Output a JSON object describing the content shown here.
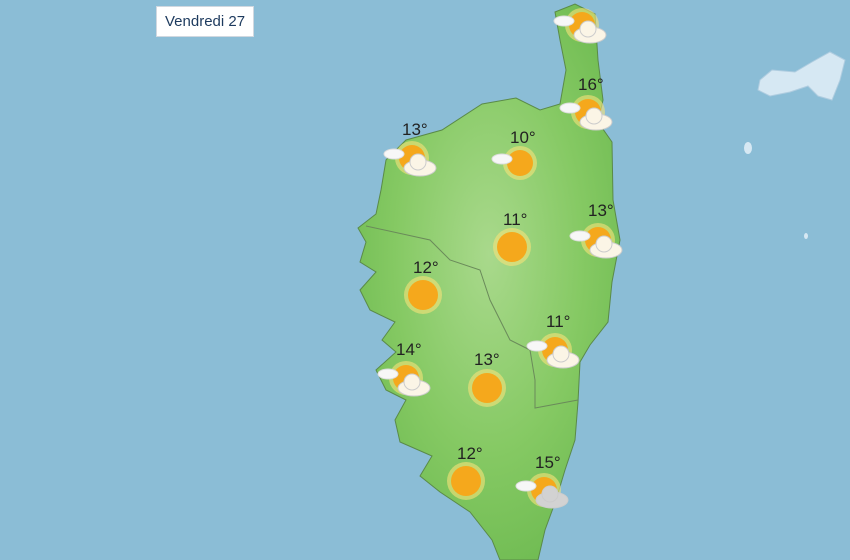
{
  "header": {
    "date_label": "Vendredi 27"
  },
  "colors": {
    "sea": "#8bbdd6",
    "land": "#7cc45c",
    "sun": "#f5a81c",
    "cloud": "#f4f4f4"
  },
  "stations": [
    {
      "temp": "",
      "icon": "sun-cloud-icon"
    },
    {
      "temp": "16°",
      "icon": "sun-cloud-icon"
    },
    {
      "temp": "13°",
      "icon": "sun-cloud-icon"
    },
    {
      "temp": "10°",
      "icon": "sun-small-cloud-icon"
    },
    {
      "temp": "11°",
      "icon": "sun-icon"
    },
    {
      "temp": "13°",
      "icon": "sun-cloud-icon"
    },
    {
      "temp": "12°",
      "icon": "sun-icon"
    },
    {
      "temp": "11°",
      "icon": "sun-cloud-icon"
    },
    {
      "temp": "14°",
      "icon": "sun-cloud-icon"
    },
    {
      "temp": "13°",
      "icon": "sun-icon"
    },
    {
      "temp": "12°",
      "icon": "sun-icon"
    },
    {
      "temp": "15°",
      "icon": "sun-grey-cloud-icon"
    }
  ]
}
